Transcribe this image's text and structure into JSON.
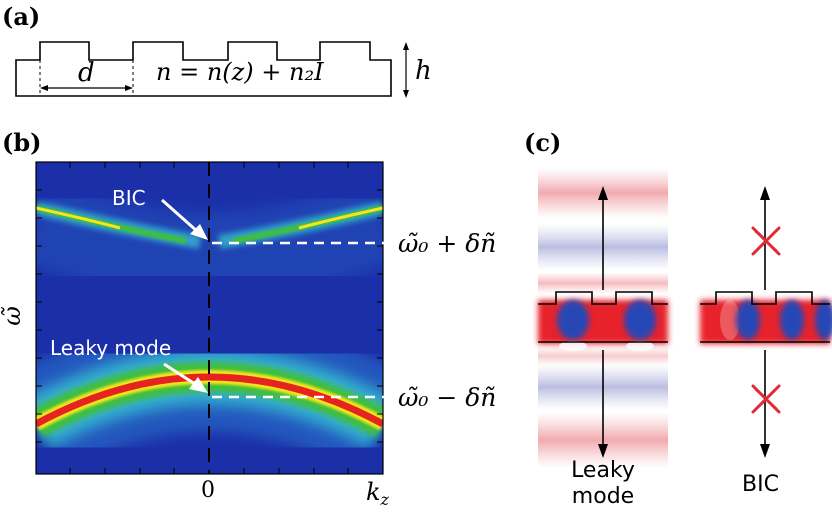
{
  "panels": {
    "a": {
      "label": "(a)",
      "period_label": "d",
      "index_formula": "n = n(z) + n₂I",
      "height_label": "h"
    },
    "b": {
      "label": "(b)",
      "y_axis_label": "ω̃",
      "x_tick_zero": "0",
      "x_axis_label": "k",
      "x_axis_subscript": "z",
      "bic_label": "BIC",
      "leaky_label": "Leaky mode",
      "upper_level": "ω̃₀ + δñ",
      "lower_level": "ω̃₀ − δñ"
    },
    "c": {
      "label": "(c)",
      "leaky_caption_line1": "Leaky",
      "leaky_caption_line2": "mode",
      "bic_caption": "BIC"
    }
  },
  "colors": {
    "background_blue": "#1b2fa8",
    "band_red": "#e5231f",
    "band_yellow": "#f4e51e",
    "band_green": "#3fbf3a",
    "band_cyan": "#38c6d4",
    "field_red": "#e8232a",
    "field_blue": "#2747b5"
  }
}
